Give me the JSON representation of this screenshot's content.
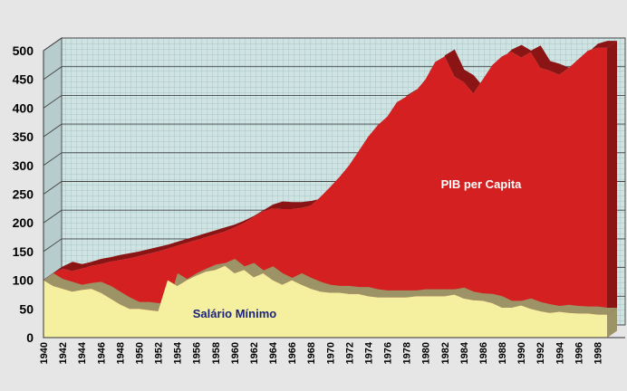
{
  "chart_data": {
    "type": "area",
    "x": [
      1940,
      1941,
      1942,
      1943,
      1944,
      1945,
      1946,
      1947,
      1948,
      1949,
      1950,
      1951,
      1952,
      1953,
      1954,
      1955,
      1956,
      1957,
      1958,
      1959,
      1960,
      1961,
      1962,
      1963,
      1964,
      1965,
      1966,
      1967,
      1968,
      1969,
      1970,
      1971,
      1972,
      1973,
      1974,
      1975,
      1976,
      1977,
      1978,
      1979,
      1980,
      1981,
      1982,
      1983,
      1984,
      1985,
      1986,
      1987,
      1988,
      1989,
      1990,
      1991,
      1992,
      1993,
      1994,
      1995,
      1996,
      1997,
      1998,
      1999
    ],
    "x_tick_labels": [
      "1940",
      "1942",
      "1944",
      "1946",
      "1948",
      "1950",
      "1952",
      "1954",
      "1956",
      "1958",
      "1960",
      "1962",
      "1964",
      "1966",
      "1968",
      "1970",
      "1972",
      "1974",
      "1976",
      "1978",
      "1980",
      "1982",
      "1984",
      "1986",
      "1988",
      "1990",
      "1992",
      "1994",
      "1996",
      "1998"
    ],
    "y_ticks": [
      0,
      50,
      100,
      150,
      200,
      250,
      300,
      350,
      400,
      450,
      500
    ],
    "ylim": [
      0,
      500
    ],
    "grid": true,
    "series": [
      {
        "name": "PIB per Capita",
        "color": "#d42020",
        "values": [
          100,
          112,
          120,
          116,
          120,
          125,
          128,
          132,
          135,
          138,
          142,
          146,
          150,
          155,
          160,
          165,
          170,
          175,
          180,
          185,
          192,
          200,
          210,
          220,
          225,
          224,
          224,
          226,
          230,
          245,
          262,
          280,
          300,
          325,
          350,
          370,
          385,
          410,
          420,
          430,
          450,
          480,
          490,
          455,
          445,
          425,
          450,
          475,
          490,
          498,
          488,
          497,
          470,
          465,
          458,
          470,
          485,
          500,
          505,
          505
        ]
      },
      {
        "name": "Salário Mínimo",
        "color": "#f5f0a0",
        "values": [
          100,
          90,
          85,
          80,
          83,
          85,
          78,
          68,
          58,
          50,
          50,
          48,
          46,
          100,
          90,
          100,
          108,
          115,
          118,
          125,
          112,
          118,
          105,
          112,
          100,
          92,
          100,
          92,
          85,
          80,
          78,
          78,
          76,
          76,
          72,
          70,
          70,
          70,
          70,
          72,
          72,
          72,
          72,
          75,
          68,
          65,
          64,
          60,
          52,
          52,
          56,
          50,
          46,
          43,
          45,
          43,
          42,
          42,
          40,
          40
        ]
      }
    ]
  }
}
